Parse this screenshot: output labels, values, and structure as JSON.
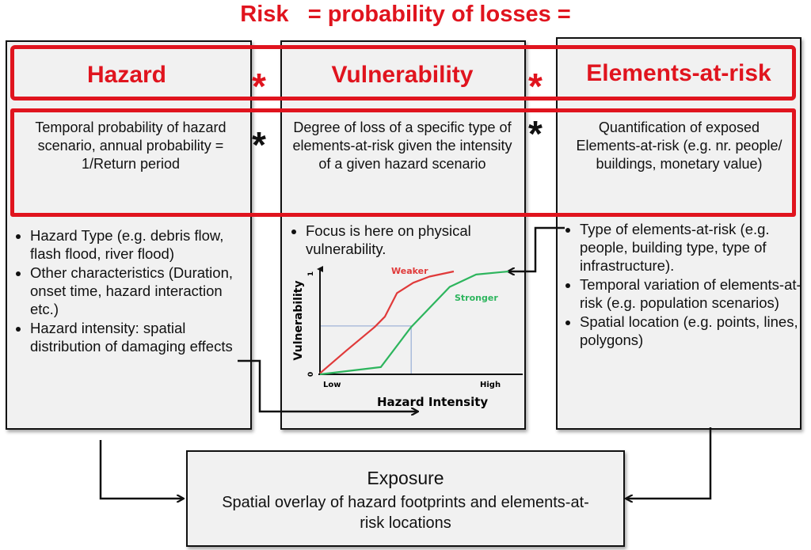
{
  "title": "Risk   = probability of losses =",
  "columns": [
    {
      "heading": "Hazard",
      "description": "Temporal probability of hazard scenario, annual probability = 1/Return period",
      "bullets": [
        "Hazard Type (e.g. debris flow, flash flood, river flood)",
        "Other characteristics (Duration, onset time, hazard interaction etc.)",
        "Hazard intensity: spatial distribution of damaging effects"
      ]
    },
    {
      "heading": "Vulnerability",
      "description": "Degree of loss of a specific type of elements-at-risk given the intensity of a given hazard scenario",
      "bullets": [
        "Focus is here on physical vulnerability."
      ]
    },
    {
      "heading": "Elements-at-risk",
      "description": "Quantification of exposed Elements-at-risk (e.g. nr. people/ buildings, monetary value)",
      "bullets": [
        "Type of elements-at-risk (e.g. people, building type, type of infrastructure).",
        "Temporal variation of elements-at-risk (e.g. population scenarios)",
        "Spatial location (e.g. points, lines, polygons)"
      ]
    }
  ],
  "operator": "*",
  "exposure": {
    "title": "Exposure",
    "text": "Spatial overlay of hazard footprints and elements-at-risk locations"
  },
  "chart_data": {
    "type": "line",
    "xlabel": "Hazard Intensity",
    "ylabel": "Vulnerability",
    "x_tick_labels": [
      "Low",
      "High"
    ],
    "y_tick_labels": [
      "0",
      "1"
    ],
    "xlim": [
      0,
      1
    ],
    "ylim": [
      0,
      1
    ],
    "series": [
      {
        "name": "Weaker",
        "color": "#e03a3a",
        "x": [
          0,
          0.13,
          0.27,
          0.32,
          0.38,
          0.46,
          0.54,
          0.66
        ],
        "y": [
          0.01,
          0.23,
          0.46,
          0.56,
          0.79,
          0.89,
          0.95,
          1.0
        ]
      },
      {
        "name": "Stronger",
        "color": "#2db55d",
        "x": [
          0,
          0.3,
          0.45,
          0.64,
          0.77,
          0.93
        ],
        "y": [
          0,
          0.07,
          0.46,
          0.85,
          0.97,
          1.0
        ]
      }
    ],
    "guide": {
      "x": 0.45,
      "y": 0.47,
      "color": "#9fb4d8"
    }
  },
  "colors": {
    "accent": "#e0141e",
    "box_fill": "#f1f1f1"
  }
}
